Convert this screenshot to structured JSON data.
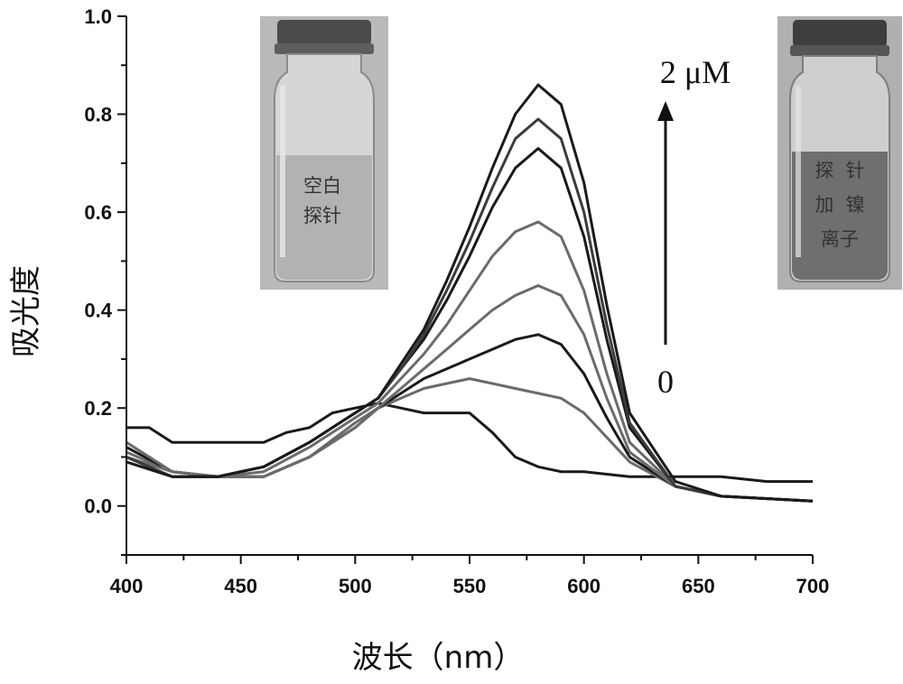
{
  "chart_data": {
    "type": "line",
    "xlabel": "波长（nm）",
    "ylabel": "吸光度",
    "xlim": [
      400,
      700
    ],
    "ylim": [
      -0.1,
      1.0
    ],
    "x_ticks": [
      "400",
      "450",
      "500",
      "550",
      "600",
      "650",
      "700"
    ],
    "y_ticks": [
      "0.0",
      "0.2",
      "0.4",
      "0.6",
      "0.8",
      "1.0"
    ],
    "grid": false,
    "legend": "none",
    "colors": {
      "dark": "#1a1a1a",
      "gray": "#6b6b6b",
      "mid": "#3c3c3c"
    },
    "series": [
      {
        "color": "dark",
        "x": [
          400,
          410,
          420,
          440,
          460,
          470,
          480,
          490,
          500,
          510,
          520,
          530,
          540,
          550,
          555,
          560,
          570,
          580,
          590,
          600,
          620,
          640,
          660,
          680,
          700
        ],
        "y": [
          0.16,
          0.16,
          0.13,
          0.13,
          0.13,
          0.15,
          0.16,
          0.19,
          0.2,
          0.21,
          0.2,
          0.19,
          0.19,
          0.19,
          0.17,
          0.15,
          0.1,
          0.08,
          0.07,
          0.07,
          0.06,
          0.06,
          0.06,
          0.05,
          0.05
        ]
      },
      {
        "color": "gray",
        "x": [
          400,
          420,
          440,
          460,
          480,
          500,
          510,
          520,
          530,
          540,
          550,
          560,
          570,
          580,
          590,
          600,
          610,
          620,
          640,
          660,
          700
        ],
        "y": [
          0.11,
          0.07,
          0.06,
          0.06,
          0.1,
          0.17,
          0.2,
          0.22,
          0.24,
          0.25,
          0.26,
          0.25,
          0.24,
          0.23,
          0.22,
          0.19,
          0.14,
          0.09,
          0.04,
          0.02,
          0.01
        ]
      },
      {
        "color": "dark",
        "x": [
          400,
          420,
          440,
          460,
          480,
          500,
          510,
          520,
          530,
          540,
          550,
          560,
          570,
          580,
          590,
          600,
          610,
          620,
          640,
          660,
          700
        ],
        "y": [
          0.12,
          0.07,
          0.06,
          0.06,
          0.1,
          0.16,
          0.2,
          0.23,
          0.26,
          0.28,
          0.3,
          0.32,
          0.34,
          0.35,
          0.33,
          0.27,
          0.18,
          0.1,
          0.04,
          0.02,
          0.01
        ]
      },
      {
        "color": "gray",
        "x": [
          400,
          420,
          440,
          460,
          480,
          500,
          510,
          520,
          530,
          540,
          550,
          560,
          570,
          580,
          590,
          600,
          610,
          620,
          640,
          660,
          700
        ],
        "y": [
          0.13,
          0.07,
          0.06,
          0.06,
          0.1,
          0.16,
          0.2,
          0.24,
          0.28,
          0.32,
          0.36,
          0.4,
          0.43,
          0.45,
          0.43,
          0.35,
          0.22,
          0.11,
          0.04,
          0.02,
          0.01
        ]
      },
      {
        "color": "gray",
        "x": [
          400,
          420,
          440,
          460,
          480,
          500,
          510,
          520,
          530,
          540,
          550,
          560,
          570,
          580,
          590,
          600,
          610,
          620,
          640,
          660,
          700
        ],
        "y": [
          0.1,
          0.07,
          0.06,
          0.07,
          0.12,
          0.18,
          0.21,
          0.26,
          0.31,
          0.37,
          0.44,
          0.51,
          0.56,
          0.58,
          0.55,
          0.44,
          0.27,
          0.13,
          0.04,
          0.02,
          0.01
        ]
      },
      {
        "color": "dark",
        "x": [
          400,
          420,
          440,
          460,
          480,
          500,
          510,
          520,
          530,
          540,
          550,
          560,
          570,
          580,
          590,
          600,
          610,
          620,
          640,
          660,
          700
        ],
        "y": [
          0.1,
          0.06,
          0.06,
          0.08,
          0.13,
          0.19,
          0.22,
          0.28,
          0.34,
          0.42,
          0.51,
          0.61,
          0.69,
          0.73,
          0.69,
          0.55,
          0.34,
          0.16,
          0.04,
          0.02,
          0.01
        ]
      },
      {
        "color": "mid",
        "x": [
          400,
          420,
          440,
          460,
          480,
          500,
          510,
          520,
          530,
          540,
          550,
          560,
          570,
          580,
          590,
          600,
          610,
          620,
          640,
          660,
          700
        ],
        "y": [
          0.1,
          0.06,
          0.06,
          0.08,
          0.13,
          0.19,
          0.22,
          0.28,
          0.35,
          0.44,
          0.54,
          0.65,
          0.75,
          0.79,
          0.75,
          0.6,
          0.37,
          0.17,
          0.04,
          0.02,
          0.01
        ]
      },
      {
        "color": "dark",
        "x": [
          400,
          420,
          440,
          460,
          480,
          500,
          510,
          520,
          530,
          540,
          550,
          560,
          570,
          580,
          590,
          600,
          610,
          620,
          640,
          660,
          700
        ],
        "y": [
          0.09,
          0.06,
          0.06,
          0.08,
          0.13,
          0.19,
          0.22,
          0.29,
          0.36,
          0.46,
          0.57,
          0.69,
          0.8,
          0.86,
          0.82,
          0.66,
          0.41,
          0.19,
          0.05,
          0.02,
          0.01
        ]
      }
    ],
    "annotations": {
      "arrow_top": "2 μM",
      "arrow_bottom": "0",
      "vial_left": [
        "空白",
        "探针"
      ],
      "vial_right": [
        "探  针",
        "加  镍",
        "离子"
      ]
    }
  }
}
